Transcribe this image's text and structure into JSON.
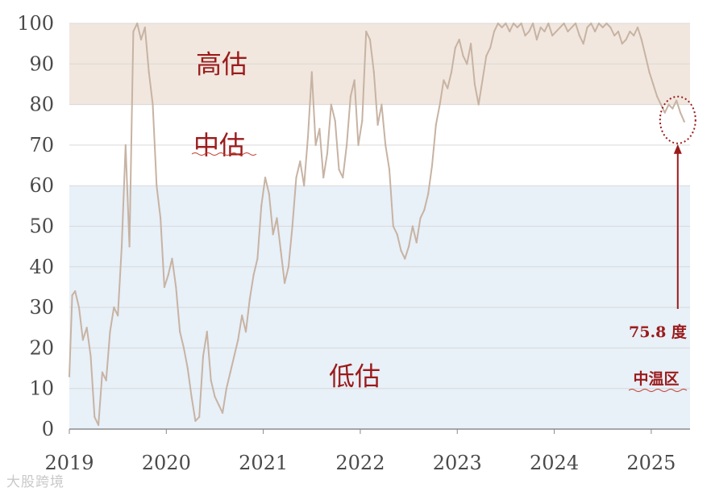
{
  "chart_data": {
    "type": "line",
    "title": "",
    "xlabel": "",
    "ylabel": "",
    "ylim": [
      0,
      100
    ],
    "xlim": [
      2019.0,
      2025.4
    ],
    "grid": true,
    "y_ticks": [
      "0",
      "10",
      "20",
      "30",
      "40",
      "50",
      "60",
      "70",
      "80",
      "90",
      "100"
    ],
    "x_ticks": [
      "2019",
      "2020",
      "2021",
      "2022",
      "2023",
      "2024",
      "2025"
    ],
    "zones": [
      {
        "label": "高估",
        "from": 80,
        "to": 100,
        "color": "#f1e7de"
      },
      {
        "label": "中估",
        "from": 60,
        "to": 80,
        "color": "#ffffff"
      },
      {
        "label": "低估",
        "from": 0,
        "to": 60,
        "color": "#e8f0f8"
      }
    ],
    "line_color": "#c7b3a3",
    "annotation": {
      "value_text": "75.8 度",
      "zone_text": "中温区",
      "color": "#9b1b1b"
    },
    "series": [
      {
        "x": [
          2019.0,
          2019.03,
          2019.06,
          2019.1,
          2019.14,
          2019.18,
          2019.22,
          2019.26,
          2019.3,
          2019.34,
          2019.38,
          2019.42,
          2019.46,
          2019.5,
          2019.54,
          2019.58,
          2019.62,
          2019.66,
          2019.7,
          2019.74,
          2019.78,
          2019.82,
          2019.86,
          2019.9,
          2019.94,
          2019.98,
          2020.02,
          2020.06,
          2020.1,
          2020.14,
          2020.18,
          2020.22,
          2020.26,
          2020.3,
          2020.34,
          2020.38,
          2020.42,
          2020.46,
          2020.5,
          2020.54,
          2020.58,
          2020.62,
          2020.66,
          2020.7,
          2020.74,
          2020.78,
          2020.82,
          2020.86,
          2020.9,
          2020.94,
          2020.98,
          2021.02,
          2021.06,
          2021.1,
          2021.14,
          2021.18,
          2021.22,
          2021.26,
          2021.3,
          2021.34,
          2021.38,
          2021.42,
          2021.46,
          2021.5,
          2021.54,
          2021.58,
          2021.62,
          2021.66,
          2021.7,
          2021.74,
          2021.78,
          2021.82,
          2021.86,
          2021.9,
          2021.94,
          2021.98,
          2022.02,
          2022.06,
          2022.1,
          2022.14,
          2022.18,
          2022.22,
          2022.26,
          2022.3,
          2022.34,
          2022.38,
          2022.42,
          2022.46,
          2022.5,
          2022.54,
          2022.58,
          2022.62,
          2022.66,
          2022.7,
          2022.74,
          2022.78,
          2022.82,
          2022.86,
          2022.9,
          2022.94,
          2022.98,
          2023.02,
          2023.06,
          2023.1,
          2023.14,
          2023.18,
          2023.22,
          2023.26,
          2023.3,
          2023.34,
          2023.38,
          2023.42,
          2023.46,
          2023.5,
          2023.54,
          2023.58,
          2023.62,
          2023.66,
          2023.7,
          2023.74,
          2023.78,
          2023.82,
          2023.86,
          2023.9,
          2023.94,
          2023.98,
          2024.02,
          2024.06,
          2024.1,
          2024.14,
          2024.18,
          2024.22,
          2024.26,
          2024.3,
          2024.34,
          2024.38,
          2024.42,
          2024.46,
          2024.5,
          2024.54,
          2024.58,
          2024.62,
          2024.66,
          2024.7,
          2024.74,
          2024.78,
          2024.82,
          2024.86,
          2024.9,
          2024.94,
          2024.98,
          2025.02,
          2025.06,
          2025.1,
          2025.14,
          2025.18,
          2025.22,
          2025.26,
          2025.3,
          2025.34
        ],
        "values": [
          13,
          33,
          34,
          30,
          22,
          25,
          18,
          3,
          1,
          14,
          12,
          24,
          30,
          28,
          45,
          70,
          45,
          98,
          100,
          96,
          99,
          88,
          80,
          60,
          52,
          35,
          38,
          42,
          35,
          24,
          20,
          15,
          8,
          2,
          3,
          18,
          24,
          12,
          8,
          6,
          4,
          10,
          14,
          18,
          22,
          28,
          24,
          32,
          38,
          42,
          55,
          62,
          58,
          48,
          52,
          44,
          36,
          40,
          50,
          62,
          66,
          60,
          72,
          88,
          70,
          74,
          62,
          68,
          80,
          76,
          64,
          62,
          70,
          82,
          86,
          70,
          76,
          98,
          96,
          88,
          75,
          80,
          70,
          64,
          50,
          48,
          44,
          42,
          45,
          50,
          46,
          52,
          54,
          58,
          65,
          75,
          80,
          86,
          84,
          88,
          94,
          96,
          92,
          90,
          95,
          85,
          80,
          86,
          92,
          94,
          98,
          100,
          99,
          100,
          98,
          100,
          99,
          100,
          97,
          98,
          100,
          96,
          99,
          98,
          100,
          97,
          98,
          99,
          100,
          98,
          99,
          100,
          97,
          95,
          99,
          100,
          98,
          100,
          99,
          100,
          99,
          97,
          98,
          95,
          96,
          98,
          97,
          99,
          96,
          92,
          88,
          85,
          82,
          80,
          78,
          80,
          79,
          81,
          78,
          75.8
        ]
      }
    ]
  },
  "watermark": "大股跨境"
}
